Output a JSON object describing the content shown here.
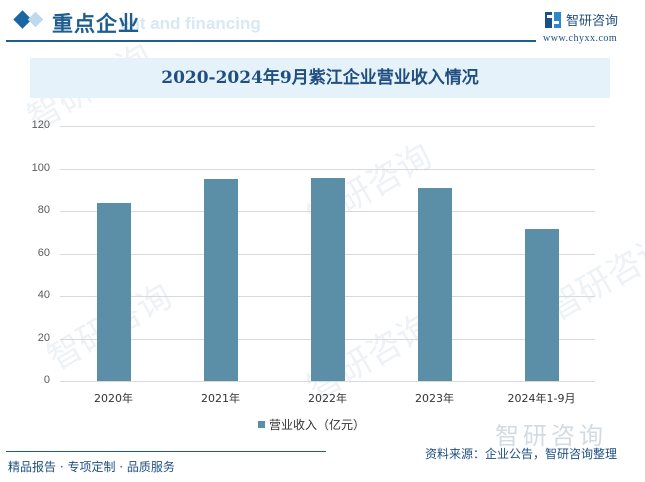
{
  "header": {
    "title": "重点企业",
    "ghost_text": "ent and financing",
    "brand_name": "智研咨询",
    "brand_url": "www.chyxx.com"
  },
  "watermark": {
    "text": "智研咨询",
    "big_text": "智研咨询"
  },
  "footer": {
    "left": "精品报告 · 专项定制 · 品质服务",
    "source": "资料来源：企业公告，智研咨询整理"
  },
  "colors": {
    "bar": "#5b8fa8",
    "title": "#1f4f80",
    "band": "#e6f2fa",
    "accent": "#1a66a3"
  },
  "chart_data": {
    "type": "bar",
    "title": "2020-2024年9月紫江企业营业收入情况",
    "categories": [
      "2020年",
      "2021年",
      "2022年",
      "2023年",
      "2024年1-9月"
    ],
    "series": [
      {
        "name": "营业收入（亿元）",
        "values": [
          83.8,
          95.1,
          95.5,
          90.8,
          71.6
        ]
      }
    ],
    "xlabel": "",
    "ylabel": "",
    "ylim": [
      0,
      120
    ],
    "yticks": [
      "0",
      "20",
      "40",
      "60",
      "80",
      "100",
      "120"
    ],
    "grid": true,
    "legend_position": "bottom"
  }
}
